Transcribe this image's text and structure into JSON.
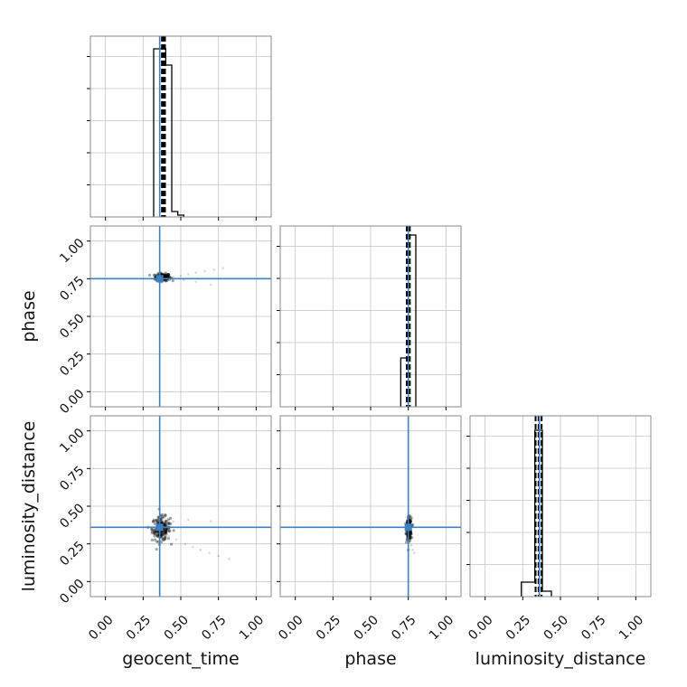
{
  "chart_data": {
    "type": "corner",
    "parameters": [
      "geocent_time",
      "phase",
      "luminosity_distance"
    ],
    "tick_labels": [
      "0.00",
      "0.25",
      "0.50",
      "0.75",
      "1.00"
    ],
    "ticks": [
      0,
      0.25,
      0.5,
      0.75,
      1.0
    ],
    "xlim": [
      -0.1,
      1.1
    ],
    "ylim": [
      -0.1,
      1.1
    ],
    "grid": true,
    "truths": {
      "geocent_time": 0.36,
      "phase": 0.75,
      "luminosity_distance": 0.36
    },
    "colors": {
      "truth": "#3f7fbf",
      "hist": "#000000",
      "grid": "#c4c4c4",
      "frame": "#888888",
      "scatter": "#000000"
    },
    "histograms": {
      "geocent_time": {
        "bin_edges": [
          0.32,
          0.4,
          0.44,
          0.48,
          0.52
        ],
        "counts": [
          0.93,
          0.84,
          0.03,
          0.01
        ],
        "quantiles": [
          0.375,
          0.385,
          0.395
        ]
      },
      "phase": {
        "bin_edges": [
          0.7,
          0.75,
          0.8
        ],
        "counts": [
          0.27,
          0.95
        ],
        "quantiles": [
          0.74,
          0.75,
          0.76
        ]
      },
      "luminosity_distance": {
        "bin_edges": [
          0.24,
          0.33,
          0.38,
          0.44
        ],
        "counts": [
          0.08,
          0.92,
          0.03
        ],
        "quantiles": [
          0.335,
          0.355,
          0.375
        ]
      }
    },
    "scatter": {
      "phase_vs_geocent_time": {
        "core": {
          "x": 0.38,
          "y": 0.76,
          "spread_x": 0.025,
          "spread_y": 0.012
        },
        "tail": [
          [
            0.45,
            0.76
          ],
          [
            0.5,
            0.77
          ],
          [
            0.55,
            0.78
          ],
          [
            0.6,
            0.79
          ],
          [
            0.66,
            0.8
          ],
          [
            0.72,
            0.81
          ],
          [
            0.78,
            0.82
          ],
          [
            0.52,
            0.74
          ],
          [
            0.6,
            0.73
          ],
          [
            0.7,
            0.71
          ]
        ]
      },
      "luminosity_distance_vs_geocent_time": {
        "core": {
          "x": 0.37,
          "y": 0.35,
          "spread_x": 0.03,
          "spread_y": 0.04
        },
        "tail": [
          [
            0.42,
            0.3
          ],
          [
            0.47,
            0.28
          ],
          [
            0.53,
            0.25
          ],
          [
            0.58,
            0.23
          ],
          [
            0.63,
            0.21
          ],
          [
            0.69,
            0.19
          ],
          [
            0.75,
            0.17
          ],
          [
            0.82,
            0.15
          ],
          [
            0.45,
            0.4
          ],
          [
            0.55,
            0.41
          ],
          [
            0.7,
            0.4
          ]
        ]
      },
      "luminosity_distance_vs_phase": {
        "core": {
          "x": 0.755,
          "y": 0.35,
          "spread_x": 0.008,
          "spread_y": 0.035
        },
        "tail": [
          [
            0.76,
            0.28
          ],
          [
            0.77,
            0.24
          ],
          [
            0.78,
            0.21
          ],
          [
            0.79,
            0.19
          ],
          [
            0.75,
            0.42
          ],
          [
            0.77,
            0.43
          ]
        ]
      }
    }
  }
}
